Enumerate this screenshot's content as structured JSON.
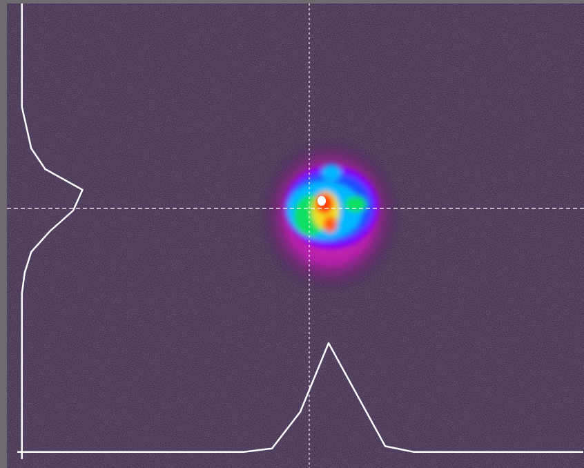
{
  "beam_profile": {
    "horizontal": [
      5,
      5,
      5,
      5,
      5,
      5,
      5,
      5,
      5,
      8,
      40,
      100,
      55,
      10,
      5,
      5,
      5,
      5,
      5,
      5,
      5
    ],
    "vertical": [
      5,
      5,
      5,
      5,
      5,
      5,
      10,
      15,
      30,
      70,
      60,
      35,
      15,
      8,
      5,
      5,
      5,
      5,
      5,
      5,
      5,
      5,
      5
    ]
  }
}
